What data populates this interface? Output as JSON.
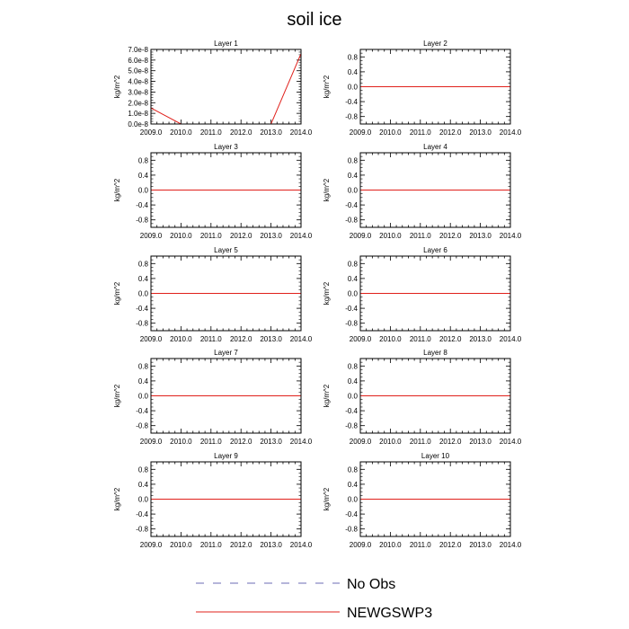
{
  "title": "soil ice",
  "legend": [
    {
      "name": "No Obs",
      "color": "#6b6bb5",
      "dash": "dashed"
    },
    {
      "name": "NEWGSWP3",
      "color": "#e0201b",
      "dash": "solid"
    }
  ],
  "chart_data": [
    {
      "type": "line",
      "title": "Layer 1",
      "ylabel": "kg/m^2",
      "xlim": [
        2009,
        2014
      ],
      "ylim": [
        0,
        7e-08
      ],
      "xticks": [
        "2009.0",
        "2010.0",
        "2011.0",
        "2012.0",
        "2013.0",
        "2014.0"
      ],
      "yticks": [
        "0.0e-8",
        "1.0e-8",
        "2.0e-8",
        "3.0e-8",
        "4.0e-8",
        "5.0e-8",
        "6.0e-8",
        "7.0e-8"
      ],
      "series": [
        {
          "name": "NEWGSWP3",
          "x": [
            2009,
            2010,
            2011,
            2012,
            2013,
            2014
          ],
          "values": [
            1.5e-08,
            0,
            0,
            0,
            0,
            6.6e-08
          ]
        }
      ]
    },
    {
      "type": "line",
      "title": "Layer 2",
      "ylabel": "kg/m^2",
      "xlim": [
        2009,
        2014
      ],
      "ylim": [
        -1,
        1
      ],
      "xticks": [
        "2009.0",
        "2010.0",
        "2011.0",
        "2012.0",
        "2013.0",
        "2014.0"
      ],
      "yticks": [
        "-0.8",
        "-0.4",
        "0.0",
        "0.4",
        "0.8"
      ],
      "series": [
        {
          "name": "NEWGSWP3",
          "x": [
            2009,
            2010,
            2011,
            2012,
            2013,
            2014
          ],
          "values": [
            0,
            0,
            0,
            0,
            0,
            0
          ]
        }
      ]
    },
    {
      "type": "line",
      "title": "Layer 3",
      "ylabel": "kg/m^2",
      "xlim": [
        2009,
        2014
      ],
      "ylim": [
        -1,
        1
      ],
      "xticks": [
        "2009.0",
        "2010.0",
        "2011.0",
        "2012.0",
        "2013.0",
        "2014.0"
      ],
      "yticks": [
        "-0.8",
        "-0.4",
        "0.0",
        "0.4",
        "0.8"
      ],
      "series": [
        {
          "name": "NEWGSWP3",
          "x": [
            2009,
            2010,
            2011,
            2012,
            2013,
            2014
          ],
          "values": [
            0,
            0,
            0,
            0,
            0,
            0
          ]
        }
      ]
    },
    {
      "type": "line",
      "title": "Layer 4",
      "ylabel": "kg/m^2",
      "xlim": [
        2009,
        2014
      ],
      "ylim": [
        -1,
        1
      ],
      "xticks": [
        "2009.0",
        "2010.0",
        "2011.0",
        "2012.0",
        "2013.0",
        "2014.0"
      ],
      "yticks": [
        "-0.8",
        "-0.4",
        "0.0",
        "0.4",
        "0.8"
      ],
      "series": [
        {
          "name": "NEWGSWP3",
          "x": [
            2009,
            2010,
            2011,
            2012,
            2013,
            2014
          ],
          "values": [
            0,
            0,
            0,
            0,
            0,
            0
          ]
        }
      ]
    },
    {
      "type": "line",
      "title": "Layer 5",
      "ylabel": "kg/m^2",
      "xlim": [
        2009,
        2014
      ],
      "ylim": [
        -1,
        1
      ],
      "xticks": [
        "2009.0",
        "2010.0",
        "2011.0",
        "2012.0",
        "2013.0",
        "2014.0"
      ],
      "yticks": [
        "-0.8",
        "-0.4",
        "0.0",
        "0.4",
        "0.8"
      ],
      "series": [
        {
          "name": "NEWGSWP3",
          "x": [
            2009,
            2010,
            2011,
            2012,
            2013,
            2014
          ],
          "values": [
            0,
            0,
            0,
            0,
            0,
            0
          ]
        }
      ]
    },
    {
      "type": "line",
      "title": "Layer 6",
      "ylabel": "kg/m^2",
      "xlim": [
        2009,
        2014
      ],
      "ylim": [
        -1,
        1
      ],
      "xticks": [
        "2009.0",
        "2010.0",
        "2011.0",
        "2012.0",
        "2013.0",
        "2014.0"
      ],
      "yticks": [
        "-0.8",
        "-0.4",
        "0.0",
        "0.4",
        "0.8"
      ],
      "series": [
        {
          "name": "NEWGSWP3",
          "x": [
            2009,
            2010,
            2011,
            2012,
            2013,
            2014
          ],
          "values": [
            0,
            0,
            0,
            0,
            0,
            0
          ]
        }
      ]
    },
    {
      "type": "line",
      "title": "Layer 7",
      "ylabel": "kg/m^2",
      "xlim": [
        2009,
        2014
      ],
      "ylim": [
        -1,
        1
      ],
      "xticks": [
        "2009.0",
        "2010.0",
        "2011.0",
        "2012.0",
        "2013.0",
        "2014.0"
      ],
      "yticks": [
        "-0.8",
        "-0.4",
        "0.0",
        "0.4",
        "0.8"
      ],
      "series": [
        {
          "name": "NEWGSWP3",
          "x": [
            2009,
            2010,
            2011,
            2012,
            2013,
            2014
          ],
          "values": [
            0,
            0,
            0,
            0,
            0,
            0
          ]
        }
      ]
    },
    {
      "type": "line",
      "title": "Layer 8",
      "ylabel": "kg/m^2",
      "xlim": [
        2009,
        2014
      ],
      "ylim": [
        -1,
        1
      ],
      "xticks": [
        "2009.0",
        "2010.0",
        "2011.0",
        "2012.0",
        "2013.0",
        "2014.0"
      ],
      "yticks": [
        "-0.8",
        "-0.4",
        "0.0",
        "0.4",
        "0.8"
      ],
      "series": [
        {
          "name": "NEWGSWP3",
          "x": [
            2009,
            2010,
            2011,
            2012,
            2013,
            2014
          ],
          "values": [
            0,
            0,
            0,
            0,
            0,
            0
          ]
        }
      ]
    },
    {
      "type": "line",
      "title": "Layer 9",
      "ylabel": "kg/m^2",
      "xlim": [
        2009,
        2014
      ],
      "ylim": [
        -1,
        1
      ],
      "xticks": [
        "2009.0",
        "2010.0",
        "2011.0",
        "2012.0",
        "2013.0",
        "2014.0"
      ],
      "yticks": [
        "-0.8",
        "-0.4",
        "0.0",
        "0.4",
        "0.8"
      ],
      "series": [
        {
          "name": "NEWGSWP3",
          "x": [
            2009,
            2010,
            2011,
            2012,
            2013,
            2014
          ],
          "values": [
            0,
            0,
            0,
            0,
            0,
            0
          ]
        }
      ]
    },
    {
      "type": "line",
      "title": "Layer 10",
      "ylabel": "kg/m^2",
      "xlim": [
        2009,
        2014
      ],
      "ylim": [
        -1,
        1
      ],
      "xticks": [
        "2009.0",
        "2010.0",
        "2011.0",
        "2012.0",
        "2013.0",
        "2014.0"
      ],
      "yticks": [
        "-0.8",
        "-0.4",
        "0.0",
        "0.4",
        "0.8"
      ],
      "series": [
        {
          "name": "NEWGSWP3",
          "x": [
            2009,
            2010,
            2011,
            2012,
            2013,
            2014
          ],
          "values": [
            0,
            0,
            0,
            0,
            0,
            0
          ]
        }
      ]
    }
  ]
}
